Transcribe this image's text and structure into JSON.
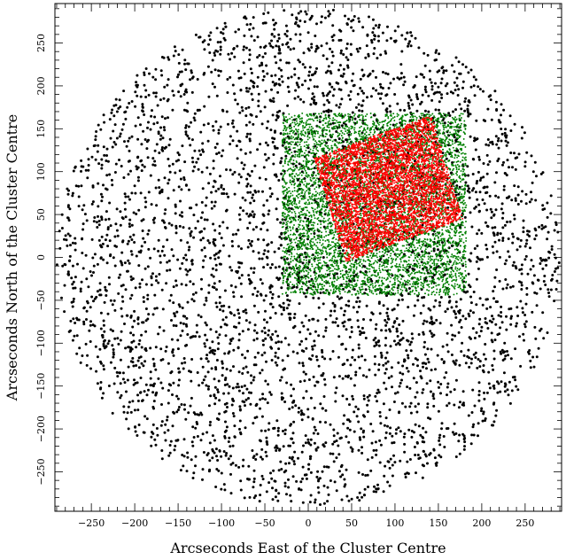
{
  "chart_data": {
    "type": "scatter",
    "xlabel": "Arcseconds East of the Cluster Centre",
    "ylabel": "Arcseconds North of the Cluster Centre",
    "xlim": [
      -292,
      292
    ],
    "ylim": [
      -296,
      296
    ],
    "xticks": [
      -250,
      -200,
      -150,
      -100,
      -50,
      0,
      50,
      100,
      150,
      200,
      250
    ],
    "yticks": [
      -250,
      -200,
      -150,
      -100,
      -50,
      0,
      50,
      100,
      150,
      200,
      250
    ],
    "grid": false,
    "legend": "none",
    "series": [
      {
        "color": "#000000",
        "marker": "dot",
        "distribution": "uniform disk",
        "center": [
          0,
          0
        ],
        "radius": 290,
        "count": 4200
      },
      {
        "color": "#008000",
        "marker": "dot",
        "distribution": "uniform rectangle",
        "x_range": [
          -30,
          182
        ],
        "y_range": [
          -44,
          168
        ],
        "count": 6000
      },
      {
        "color": "#ff0000",
        "marker": "dot",
        "distribution": "uniform rotated square",
        "corners": [
          [
            7,
            116
          ],
          [
            142,
            166
          ],
          [
            182,
            34
          ],
          [
            43,
            -5
          ]
        ],
        "count": 5000
      }
    ]
  }
}
